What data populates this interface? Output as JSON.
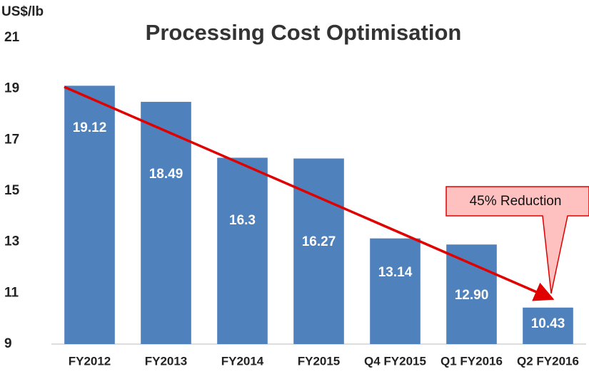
{
  "chart_data": {
    "type": "bar",
    "title": "Processing Cost Optimisation",
    "y_label": "US$/lb",
    "categories": [
      "FY2012",
      "FY2013",
      "FY2014",
      "FY2015",
      "Q4 FY2015",
      "Q1 FY2016",
      "Q2 FY2016"
    ],
    "values": [
      19.12,
      18.49,
      16.3,
      16.27,
      13.14,
      12.9,
      10.43
    ],
    "value_labels": [
      "19.12",
      "18.49",
      "16.3",
      "16.27",
      "13.14",
      "12.90",
      "10.43"
    ],
    "color": "#4f81bd",
    "ylim": [
      9,
      21
    ],
    "yticks": [
      9,
      11,
      13,
      15,
      17,
      19,
      21
    ],
    "grid": false,
    "annotation": "45% Reduction"
  }
}
